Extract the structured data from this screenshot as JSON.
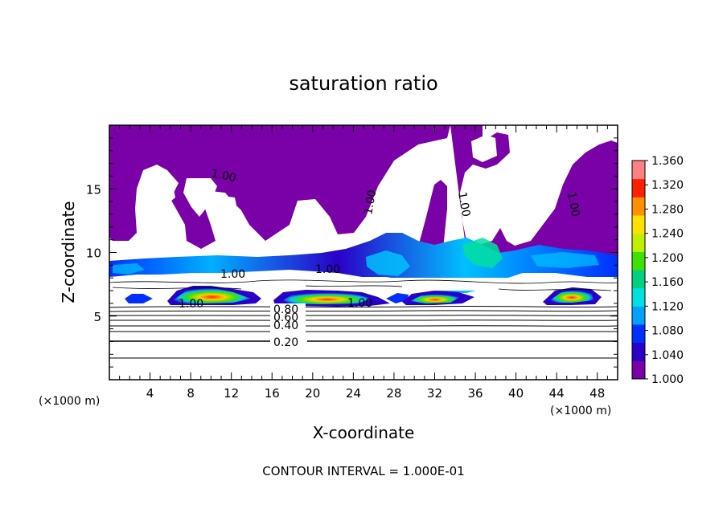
{
  "chart_data": {
    "type": "heatmap",
    "title": "saturation ratio",
    "xlabel": "X-coordinate",
    "ylabel": "Z-coordinate",
    "x_unit": "(×1000 m)",
    "y_unit": "(×1000 m)",
    "xlim": [
      0,
      50
    ],
    "ylim": [
      0,
      20
    ],
    "x_ticks": [
      "4",
      "8",
      "12",
      "16",
      "20",
      "24",
      "28",
      "32",
      "36",
      "40",
      "44",
      "48"
    ],
    "y_ticks": [
      "5",
      "10",
      "15"
    ],
    "footer": "CONTOUR INTERVAL = 1.000E-01",
    "colorbar": {
      "min": 1.0,
      "max": 1.36,
      "labels": [
        "1.360",
        "1.320",
        "1.280",
        "1.240",
        "1.200",
        "1.160",
        "1.120",
        "1.080",
        "1.040",
        "1.000"
      ],
      "colors": [
        "#7a00a8",
        "#2a00c8",
        "#0030ff",
        "#00a0ff",
        "#00e0e0",
        "#00d080",
        "#40e000",
        "#c0f000",
        "#ffe000",
        "#ff9000",
        "#ff2000",
        "#ff8080"
      ]
    },
    "contour_labels": [
      {
        "text": "1.00",
        "x": 8.5,
        "z": 6.0
      },
      {
        "text": "1.00",
        "x": 23.5,
        "z": 6.1
      },
      {
        "text": "1.00",
        "x": 21.5,
        "z": 8.4
      },
      {
        "text": "1.00",
        "x": 12.5,
        "z": 8.0
      },
      {
        "text": "1.00",
        "x": 9.0,
        "z": 16.2
      },
      {
        "text": "1.00",
        "x": 26.0,
        "z": 14.5
      },
      {
        "text": "1.00",
        "x": 34.2,
        "z": 14.0
      },
      {
        "text": "1.00",
        "x": 45.0,
        "z": 14.0
      },
      {
        "text": "0.80",
        "x": 17.5,
        "z": 5.5
      },
      {
        "text": "0.60",
        "x": 17.5,
        "z": 5.0
      },
      {
        "text": "0.40",
        "x": 17.5,
        "z": 4.3
      },
      {
        "text": "0.20",
        "x": 17.5,
        "z": 2.9
      }
    ],
    "supersaturated_cores": [
      {
        "x_center": 9.5,
        "z_center": 6.5,
        "peak": 1.3
      },
      {
        "x_center": 20.5,
        "z_center": 6.4,
        "peak": 1.27
      },
      {
        "x_center": 31.5,
        "z_center": 6.4,
        "peak": 1.3
      },
      {
        "x_center": 45.5,
        "z_center": 6.5,
        "peak": 1.3
      }
    ],
    "saturated_upper_region": {
      "z_from": 8.5,
      "z_to": 20,
      "value": 1.0
    },
    "grid": false,
    "legend": "right"
  }
}
